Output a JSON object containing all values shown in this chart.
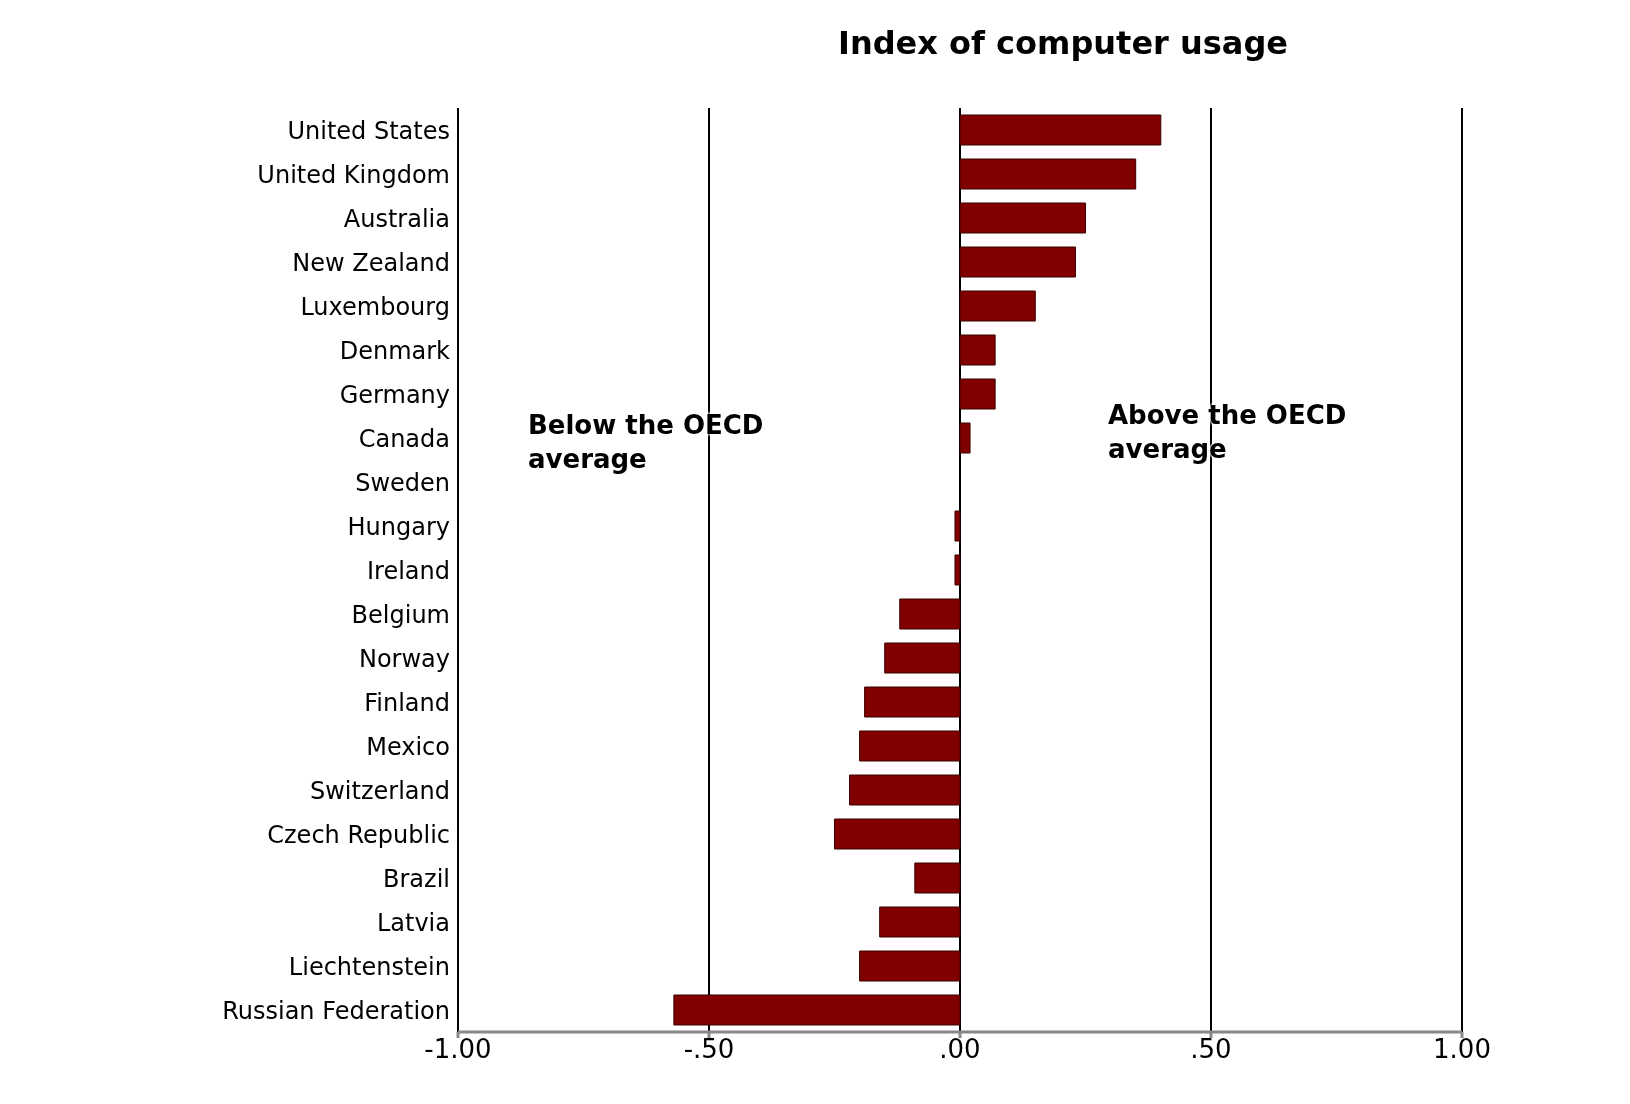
{
  "chart_data": {
    "type": "bar",
    "orientation": "horizontal",
    "title": "Index of computer usage",
    "categories": [
      "United States",
      "United Kingdom",
      "Australia",
      "New Zealand",
      "Luxembourg",
      "Denmark",
      "Germany",
      "Canada",
      "Sweden",
      "Hungary",
      "Ireland",
      "Belgium",
      "Norway",
      "Finland",
      "Mexico",
      "Switzerland",
      "Czech Republic",
      "Brazil",
      "Latvia",
      "Liechtenstein",
      "Russian Federation"
    ],
    "values": [
      0.4,
      0.35,
      0.25,
      0.23,
      0.15,
      0.07,
      0.07,
      0.02,
      0,
      -0.01,
      -0.01,
      -0.12,
      -0.15,
      -0.19,
      -0.2,
      -0.22,
      -0.25,
      -0.09,
      -0.16,
      -0.2,
      -0.57
    ],
    "color": "#800000",
    "xlim": [
      -1,
      1
    ],
    "xticks": [
      {
        "value": -1,
        "label": "-1.00"
      },
      {
        "value": -0.5,
        "label": "-.50"
      },
      {
        "value": 0,
        "label": ".00"
      },
      {
        "value": 0.5,
        "label": ".50"
      },
      {
        "value": 1,
        "label": "1.00"
      }
    ],
    "grid": "x",
    "annotations": [
      "Below the OECD average",
      "Above the OECD average"
    ]
  }
}
